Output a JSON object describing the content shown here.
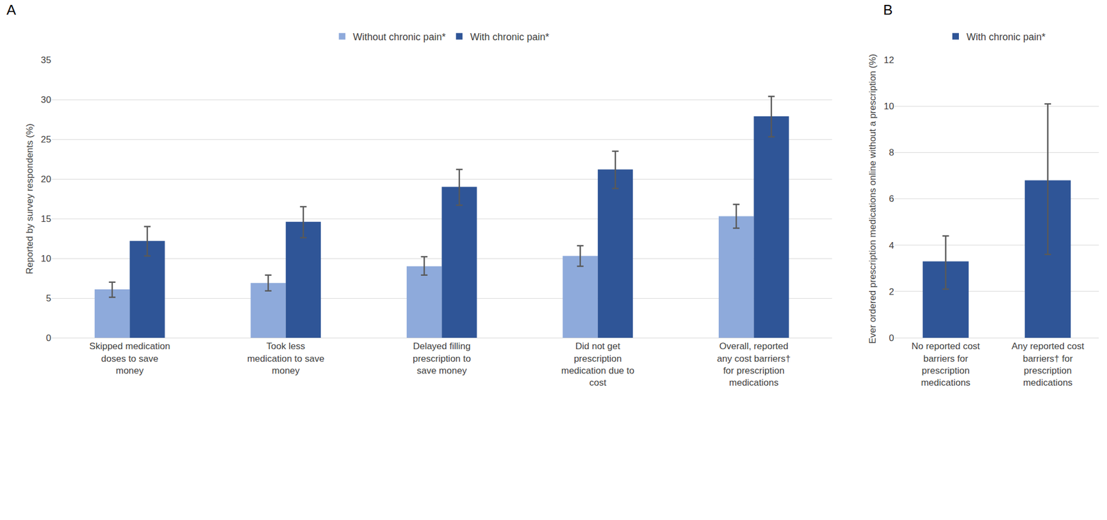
{
  "chart_data": [
    {
      "type": "bar",
      "title": "A",
      "y_label": "Reported by survey respondents (%)",
      "categories": [
        "Skipped medication doses to save money",
        "Took less medication to save money",
        "Delayed filling prescription to save money",
        "Did not get prescription medication due to cost",
        "Overall, reported any cost barriers† for prescription medications"
      ],
      "series": [
        {
          "name": "Without chronic pain*",
          "color": "#8eaadb",
          "values": [
            6.1,
            6.9,
            9.0,
            10.3,
            15.3
          ],
          "ci_low": [
            5.1,
            5.9,
            7.9,
            9.0,
            13.8
          ],
          "ci_high": [
            7.0,
            7.9,
            10.2,
            11.6,
            16.8
          ]
        },
        {
          "name": "With chronic pain*",
          "color": "#2f5597",
          "values": [
            12.2,
            14.6,
            19.0,
            21.2,
            27.9
          ],
          "ci_low": [
            10.3,
            12.6,
            16.7,
            18.8,
            25.3
          ],
          "ci_high": [
            14.0,
            16.5,
            21.2,
            23.5,
            30.4
          ]
        }
      ],
      "ylim": [
        0,
        35
      ],
      "yticks": [
        0,
        5,
        10,
        15,
        20,
        25,
        30,
        35
      ],
      "grid": true,
      "legend": "top"
    },
    {
      "type": "bar",
      "title": "B",
      "y_label": "Ever ordered prescription medications online without a prescription (%)",
      "categories": [
        "No reported cost barriers for prescription medications",
        "Any reported cost barriers† for prescription medications"
      ],
      "series": [
        {
          "name": "With chronic pain*",
          "color": "#2f5597",
          "values": [
            3.3,
            6.8
          ],
          "ci_low": [
            2.1,
            3.6
          ],
          "ci_high": [
            4.4,
            10.1
          ]
        }
      ],
      "ylim": [
        0,
        12
      ],
      "yticks": [
        0,
        2,
        4,
        6,
        8,
        10,
        12
      ],
      "grid": true,
      "legend": "top"
    }
  ]
}
